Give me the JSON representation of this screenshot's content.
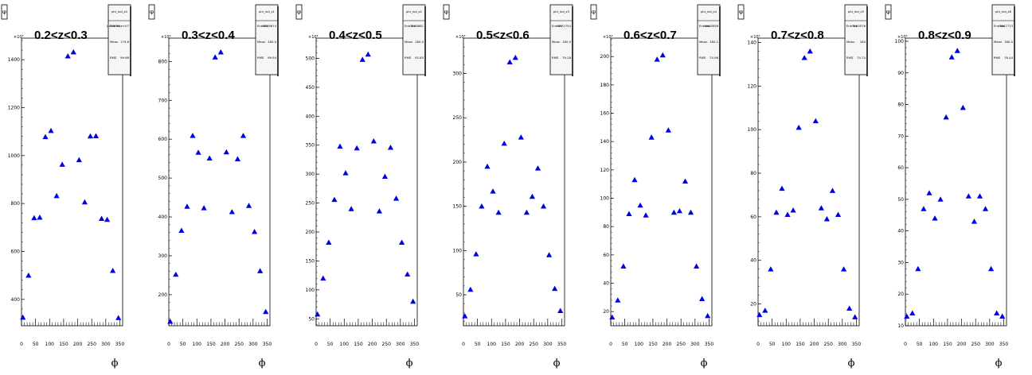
{
  "chart_data": [
    {
      "type": "scatter",
      "title": "0.2<z<0.3",
      "ylabel": "φ",
      "xlabel": "ϕ",
      "multiplier": "×10³",
      "xlim": [
        0,
        360
      ],
      "ylim": [
        290,
        1490
      ],
      "xticks": [
        0,
        50,
        100,
        150,
        200,
        250,
        300,
        350
      ],
      "yticks": [
        400,
        600,
        800,
        1000,
        1200,
        1400
      ],
      "stats": {
        "name": "phi_ind_z0",
        "rows": [
          [
            "Entries",
            "1.055391e+07"
          ],
          [
            "Mean",
            "179.8"
          ],
          [
            "RMS",
            "99.66"
          ]
        ]
      },
      "x": [
        5,
        25,
        45,
        65,
        85,
        105,
        125,
        145,
        165,
        185,
        205,
        225,
        245,
        265,
        285,
        305,
        325,
        345
      ],
      "y": [
        325,
        500,
        740,
        742,
        1078,
        1104,
        832,
        963,
        1415,
        1432,
        982,
        806,
        1081,
        1082,
        737,
        733,
        520,
        323
      ],
      "marker_color": "#0000e6"
    },
    {
      "type": "scatter",
      "title": "0.3<z<0.4",
      "ylabel": "φ",
      "xlabel": "ϕ",
      "multiplier": "×10³",
      "xlim": [
        0,
        360
      ],
      "ylim": [
        120,
        860
      ],
      "xticks": [
        0,
        50,
        100,
        150,
        200,
        250,
        300,
        350
      ],
      "yticks": [
        200,
        300,
        400,
        500,
        600,
        700,
        800
      ],
      "stats": {
        "name": "phi_ind_z1",
        "rows": [
          [
            "Entries",
            "8338674"
          ],
          [
            "Mean",
            "180.0"
          ],
          [
            "RMS",
            "99.94"
          ]
        ]
      },
      "x": [
        5,
        25,
        45,
        65,
        85,
        105,
        125,
        145,
        165,
        185,
        205,
        225,
        245,
        265,
        285,
        305,
        325,
        345
      ],
      "y": [
        131,
        252,
        365,
        427,
        609,
        566,
        423,
        551,
        811,
        824,
        567,
        413,
        549,
        609,
        429,
        362,
        261,
        156
      ],
      "marker_color": "#0000e6"
    },
    {
      "type": "scatter",
      "title": "0.4<z<0.5",
      "ylabel": "φ",
      "xlabel": "ϕ",
      "multiplier": "×10³",
      "xlim": [
        0,
        360
      ],
      "ylim": [
        38,
        535
      ],
      "xticks": [
        0,
        50,
        100,
        150,
        200,
        250,
        300,
        350
      ],
      "yticks": [
        50,
        100,
        150,
        200,
        250,
        300,
        350,
        400,
        450,
        500
      ],
      "stats": {
        "name": "phi_ind_z2",
        "rows": [
          [
            "Entries",
            "7168861"
          ],
          [
            "Mean",
            "180.0"
          ],
          [
            "RMS",
            "92.85"
          ]
        ]
      },
      "x": [
        5,
        25,
        45,
        65,
        85,
        105,
        125,
        145,
        165,
        185,
        205,
        225,
        245,
        265,
        285,
        305,
        325,
        345
      ],
      "y": [
        58,
        120,
        182,
        256,
        348,
        302,
        240,
        345,
        498,
        507,
        357,
        236,
        296,
        346,
        258,
        182,
        127,
        80
      ],
      "marker_color": "#0000e6"
    },
    {
      "type": "scatter",
      "title": "0.5<z<0.6",
      "ylabel": "φ",
      "xlabel": "ϕ",
      "multiplier": "×10³",
      "xlim": [
        0,
        360
      ],
      "ylim": [
        15,
        340
      ],
      "xticks": [
        0,
        50,
        100,
        150,
        200,
        250,
        300,
        350
      ],
      "yticks": [
        50,
        100,
        150,
        200,
        250,
        300
      ],
      "stats": {
        "name": "phi_ind_z3",
        "rows": [
          [
            "Entries",
            "6772754"
          ],
          [
            "Mean",
            "180.0"
          ],
          [
            "RMS",
            "79.28"
          ]
        ]
      },
      "x": [
        5,
        25,
        45,
        65,
        85,
        105,
        125,
        145,
        165,
        185,
        205,
        225,
        245,
        265,
        285,
        305,
        325,
        345
      ],
      "y": [
        26,
        56,
        96,
        150,
        195,
        167,
        143,
        221,
        313,
        318,
        228,
        143,
        161,
        193,
        150,
        95,
        57,
        32
      ],
      "marker_color": "#0000e6"
    },
    {
      "type": "scatter",
      "title": "0.6<z<0.7",
      "ylabel": "φ",
      "xlabel": "ϕ",
      "multiplier": "×10³",
      "xlim": [
        0,
        360
      ],
      "ylim": [
        10,
        213
      ],
      "xticks": [
        0,
        50,
        100,
        150,
        200,
        250,
        300,
        350
      ],
      "yticks": [
        20,
        40,
        60,
        80,
        100,
        120,
        140,
        160,
        180,
        200
      ],
      "stats": {
        "name": "phi_ind_z4",
        "rows": [
          [
            "Entries",
            "6448956"
          ],
          [
            "Mean",
            "180.1"
          ],
          [
            "RMS",
            "74.96"
          ]
        ]
      },
      "x": [
        5,
        25,
        45,
        65,
        85,
        105,
        125,
        145,
        165,
        185,
        205,
        225,
        245,
        265,
        285,
        305,
        325,
        345
      ],
      "y": [
        16,
        28,
        52,
        89,
        113,
        95,
        88,
        143,
        198,
        201,
        148,
        90,
        91,
        112,
        90,
        52,
        29,
        17
      ],
      "marker_color": "#0000e6"
    },
    {
      "type": "scatter",
      "title": "0.7<z<0.8",
      "ylabel": "φ",
      "xlabel": "ϕ",
      "multiplier": "×10³",
      "xlim": [
        0,
        360
      ],
      "ylim": [
        10,
        142
      ],
      "xticks": [
        0,
        50,
        100,
        150,
        200,
        250,
        300,
        350
      ],
      "yticks": [
        20,
        40,
        60,
        80,
        100,
        120,
        140
      ],
      "stats": {
        "name": "phi_ind_z5",
        "rows": [
          [
            "Entries",
            "7160576"
          ],
          [
            "Mean",
            "180"
          ],
          [
            "RMS",
            "74.74"
          ]
        ]
      },
      "x": [
        5,
        25,
        45,
        65,
        85,
        105,
        125,
        145,
        165,
        185,
        205,
        225,
        245,
        265,
        285,
        305,
        325,
        345
      ],
      "y": [
        15,
        17,
        36,
        62,
        73,
        61,
        63,
        101,
        133,
        136,
        104,
        64,
        59,
        72,
        61,
        36,
        18,
        14
      ],
      "marker_color": "#0000e6"
    },
    {
      "type": "scatter",
      "title": "0.8<z<0.9",
      "ylabel": "φ",
      "xlabel": "ϕ",
      "multiplier": "×10³",
      "xlim": [
        0,
        360
      ],
      "ylim": [
        10,
        101
      ],
      "xticks": [
        0,
        50,
        100,
        150,
        200,
        250,
        300,
        350
      ],
      "yticks": [
        10,
        20,
        30,
        40,
        50,
        60,
        70,
        80,
        90,
        100
      ],
      "stats": {
        "name": "phi_ind_z6",
        "rows": [
          [
            "Entries",
            "5847713"
          ],
          [
            "Mean",
            "180.0"
          ],
          [
            "RMS",
            "76.44"
          ]
        ]
      },
      "x": [
        5,
        25,
        45,
        65,
        85,
        105,
        125,
        145,
        165,
        185,
        205,
        225,
        245,
        265,
        285,
        305,
        325,
        345
      ],
      "y": [
        13,
        14,
        28,
        47,
        52,
        44,
        50,
        76,
        95,
        97,
        79,
        51,
        43,
        51,
        47,
        28,
        14,
        13
      ],
      "marker_color": "#0000e6"
    }
  ]
}
